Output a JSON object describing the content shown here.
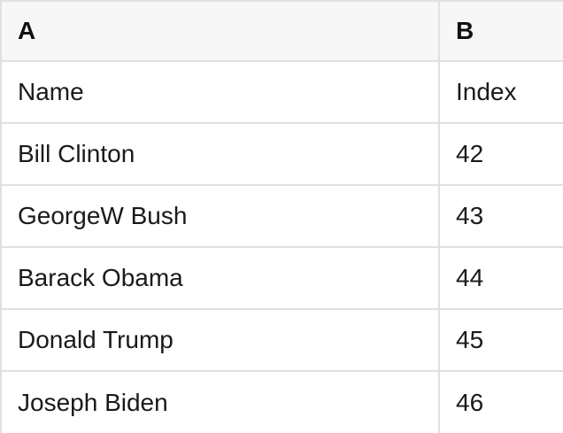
{
  "colors": {
    "header_background": "#f7f7f7",
    "grid_border": "#e0e0e0",
    "cell_background": "#ffffff",
    "text": "#1a1a1a"
  },
  "table": {
    "column_headers": [
      {
        "label": "A"
      },
      {
        "label": "B"
      }
    ],
    "rows": [
      {
        "a": "Name",
        "b": "Index"
      },
      {
        "a": "Bill Clinton",
        "b": "42"
      },
      {
        "a": "GeorgeW Bush",
        "b": "43"
      },
      {
        "a": "Barack Obama",
        "b": "44"
      },
      {
        "a": "Donald Trump",
        "b": "45"
      },
      {
        "a": "Joseph Biden",
        "b": "46"
      }
    ]
  }
}
